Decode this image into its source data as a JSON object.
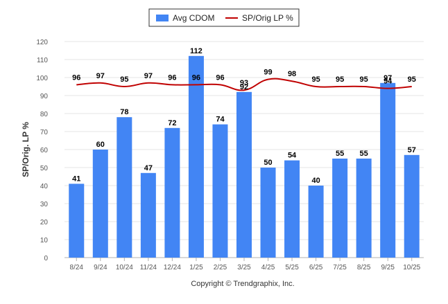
{
  "chart_data": {
    "type": "bar",
    "title": "",
    "xlabel": "",
    "ylabel": "SP/Orig. LP %",
    "ylim": [
      0,
      120
    ],
    "yticks": [
      0,
      10,
      20,
      30,
      40,
      50,
      60,
      70,
      80,
      90,
      100,
      110,
      120
    ],
    "grid": true,
    "legend_position": "top-center",
    "categories": [
      "8/24",
      "9/24",
      "10/24",
      "11/24",
      "12/24",
      "1/25",
      "2/25",
      "3/25",
      "4/25",
      "5/25",
      "6/25",
      "7/25",
      "8/25",
      "9/25",
      "10/25"
    ],
    "series": [
      {
        "name": "Avg CDOM",
        "type": "bar",
        "color": "#4285f4",
        "values": [
          41,
          60,
          78,
          47,
          72,
          112,
          74,
          92,
          50,
          54,
          40,
          55,
          55,
          97,
          57
        ]
      },
      {
        "name": "SP/Orig LP %",
        "type": "line",
        "color": "#c00000",
        "values": [
          96,
          97,
          95,
          97,
          96,
          96,
          96,
          93,
          99,
          98,
          95,
          95,
          95,
          94,
          95
        ]
      }
    ],
    "credit": "Copyright © Trendgraphix, Inc."
  }
}
